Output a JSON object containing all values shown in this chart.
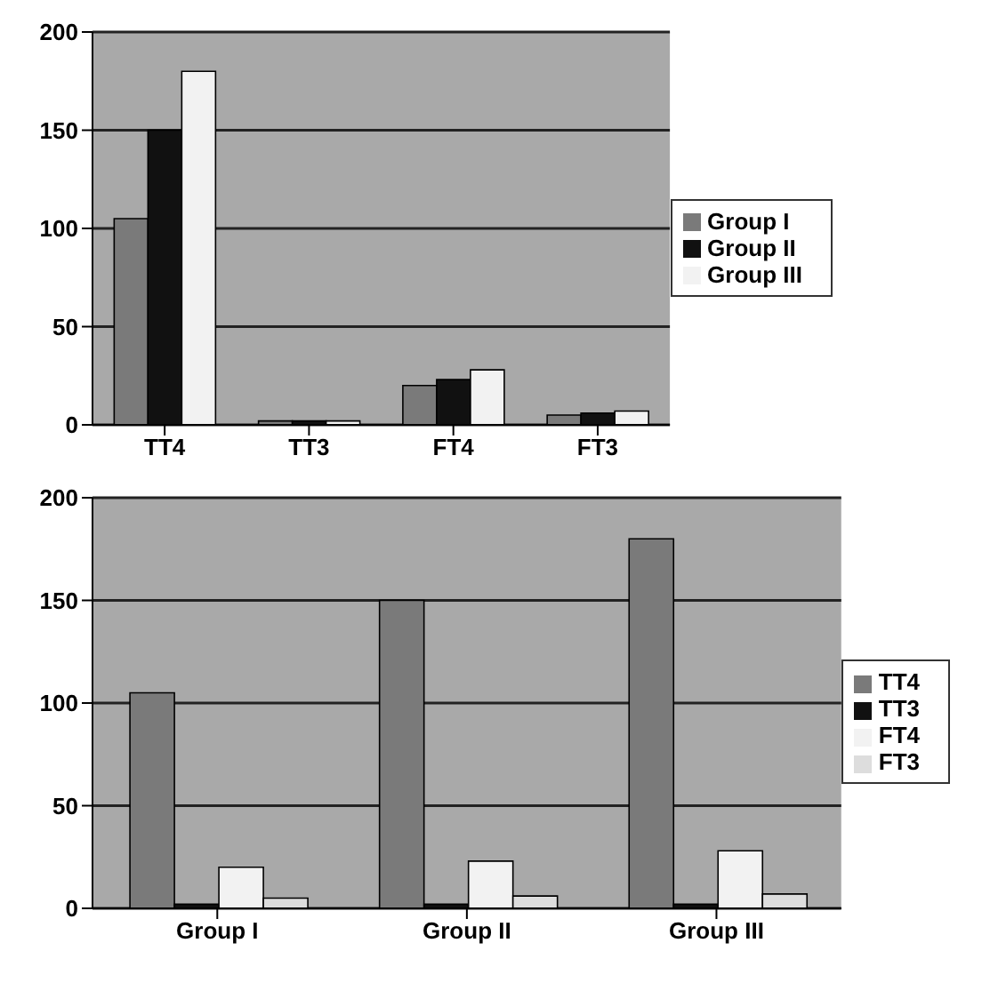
{
  "chart_data": [
    {
      "type": "bar",
      "categories": [
        "TT4",
        "TT3",
        "FT4",
        "FT3"
      ],
      "series": [
        {
          "name": "Group I",
          "color": "#7a7a7a",
          "values": [
            105,
            2,
            20,
            5
          ]
        },
        {
          "name": "Group II",
          "color": "#111111",
          "values": [
            150,
            2,
            23,
            6
          ]
        },
        {
          "name": "Group III",
          "color": "#f2f2f2",
          "values": [
            180,
            2,
            28,
            7
          ]
        }
      ],
      "ylim": [
        0,
        200
      ],
      "yticks": [
        0,
        50,
        100,
        150,
        200
      ],
      "grid": "y",
      "legend": "right"
    },
    {
      "type": "bar",
      "categories": [
        "Group I",
        "Group II",
        "Group III"
      ],
      "series": [
        {
          "name": "TT4",
          "color": "#7a7a7a",
          "values": [
            105,
            150,
            180
          ]
        },
        {
          "name": "TT3",
          "color": "#111111",
          "values": [
            2,
            2,
            2
          ]
        },
        {
          "name": "FT4",
          "color": "#f2f2f2",
          "values": [
            20,
            23,
            28
          ]
        },
        {
          "name": "FT3",
          "color": "#dddddd",
          "values": [
            5,
            6,
            7
          ]
        }
      ],
      "ylim": [
        0,
        200
      ],
      "yticks": [
        0,
        50,
        100,
        150,
        200
      ],
      "grid": "y",
      "legend": "right"
    }
  ]
}
